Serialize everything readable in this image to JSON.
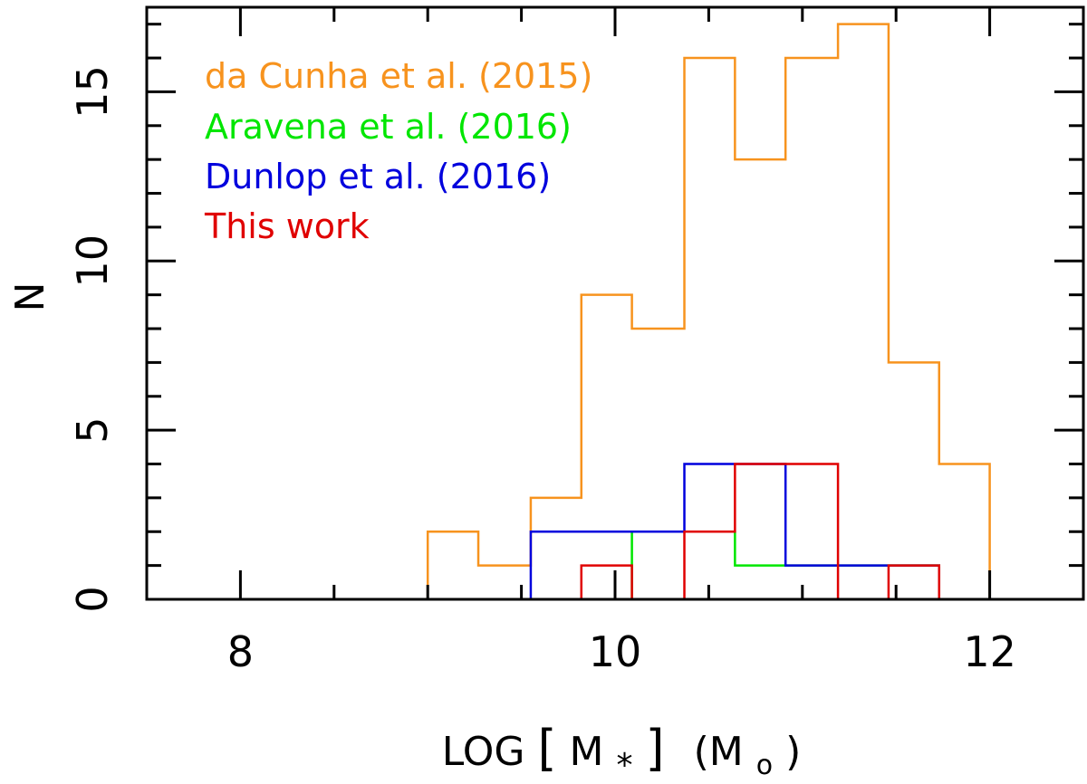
{
  "chart_data": {
    "type": "histogram",
    "xlabel_parts": {
      "prefix": "LOG",
      "lb": "[",
      "m": "M",
      "sub": "*",
      "rb": "]",
      "unit_open": "(M",
      "unit_sub": "o",
      "unit_close": ")"
    },
    "ylabel": "N",
    "xlim": [
      7.5,
      12.5
    ],
    "ylim": [
      0,
      17.5
    ],
    "x_ticks_major": [
      8,
      10,
      12
    ],
    "x_ticks_minor": [
      7.5,
      8.5,
      9,
      9.5,
      10.5,
      11,
      11.5,
      12.5
    ],
    "y_ticks_major": [
      0,
      5,
      10,
      15
    ],
    "y_ticks_minor": [
      1,
      2,
      3,
      4,
      6,
      7,
      8,
      9,
      11,
      12,
      13,
      14,
      16,
      17
    ],
    "x_tick_labels": [
      "8",
      "10",
      "12"
    ],
    "y_tick_labels": [
      "0",
      "5",
      "10",
      "15"
    ],
    "legend_position": "top-left",
    "series": [
      {
        "name": "da Cunha et al. (2015)",
        "color": "#f7931e",
        "edges": [
          9.0,
          9.27,
          9.55,
          9.82,
          10.09,
          10.37,
          10.64,
          10.91,
          11.19,
          11.46,
          11.73,
          12.0
        ],
        "counts": [
          2,
          1,
          3,
          9,
          8,
          16,
          13,
          16,
          17,
          7,
          4
        ]
      },
      {
        "name": "Aravena et al. (2016)",
        "color": "#00e600",
        "edges": [
          9.55,
          10.09,
          10.64,
          11.73
        ],
        "counts": [
          0,
          2,
          1
        ]
      },
      {
        "name": "Dunlop et al. (2016)",
        "color": "#0000dd",
        "edges": [
          9.55,
          10.37,
          10.91,
          11.73
        ],
        "counts": [
          2,
          4,
          1
        ]
      },
      {
        "name": "This work",
        "color": "#e00000",
        "edges": [
          9.82,
          10.09,
          10.37,
          10.64,
          11.19,
          11.46,
          11.73
        ],
        "counts": [
          1,
          0,
          2,
          4,
          0,
          1
        ]
      }
    ]
  }
}
